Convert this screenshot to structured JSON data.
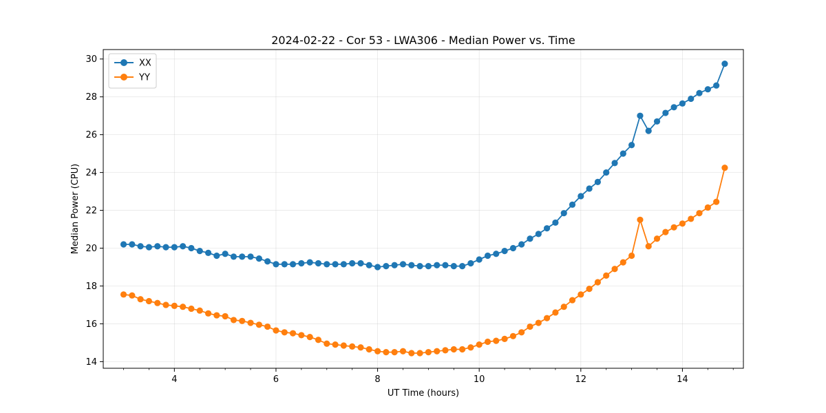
{
  "chart_data": {
    "type": "line",
    "title": "2024-02-22 - Cor 53 - LWA306 - Median Power vs. Time",
    "xlabel": "UT Time (hours)",
    "ylabel": "Median Power (CPU)",
    "xlim": [
      2.6,
      15.2
    ],
    "ylim": [
      13.65,
      30.5
    ],
    "xticks": [
      4,
      6,
      8,
      10,
      12,
      14
    ],
    "yticks": [
      14,
      16,
      18,
      20,
      22,
      24,
      26,
      28,
      30
    ],
    "grid": true,
    "legend_position": "top-left",
    "x": [
      3.0,
      3.167,
      3.333,
      3.5,
      3.667,
      3.833,
      4.0,
      4.167,
      4.333,
      4.5,
      4.667,
      4.833,
      5.0,
      5.167,
      5.333,
      5.5,
      5.667,
      5.833,
      6.0,
      6.167,
      6.333,
      6.5,
      6.667,
      6.833,
      7.0,
      7.167,
      7.333,
      7.5,
      7.667,
      7.833,
      8.0,
      8.167,
      8.333,
      8.5,
      8.667,
      8.833,
      9.0,
      9.167,
      9.333,
      9.5,
      9.667,
      9.833,
      10.0,
      10.167,
      10.333,
      10.5,
      10.667,
      10.833,
      11.0,
      11.167,
      11.333,
      11.5,
      11.667,
      11.833,
      12.0,
      12.167,
      12.333,
      12.5,
      12.667,
      12.833,
      13.0,
      13.167,
      13.333,
      13.5,
      13.667,
      13.833,
      14.0,
      14.167,
      14.333,
      14.5,
      14.667,
      14.833
    ],
    "series": [
      {
        "name": "XX",
        "color": "#1f77b4",
        "values": [
          20.2,
          20.2,
          20.1,
          20.05,
          20.1,
          20.05,
          20.05,
          20.1,
          20.0,
          19.85,
          19.75,
          19.6,
          19.7,
          19.55,
          19.55,
          19.55,
          19.45,
          19.3,
          19.15,
          19.15,
          19.15,
          19.2,
          19.25,
          19.2,
          19.15,
          19.15,
          19.15,
          19.2,
          19.2,
          19.1,
          19.0,
          19.05,
          19.1,
          19.15,
          19.1,
          19.05,
          19.05,
          19.1,
          19.1,
          19.05,
          19.05,
          19.2,
          19.4,
          19.6,
          19.7,
          19.85,
          20.0,
          20.2,
          20.5,
          20.75,
          21.05,
          21.35,
          21.85,
          22.3,
          22.75,
          23.15,
          23.5,
          24.0,
          24.5,
          25.0,
          25.45,
          27.0,
          26.2,
          26.7,
          27.15,
          27.45,
          27.65,
          27.9,
          28.2,
          28.4,
          28.6,
          29.75
        ]
      },
      {
        "name": "YY",
        "color": "#ff7f0e",
        "values": [
          17.55,
          17.5,
          17.3,
          17.2,
          17.1,
          17.0,
          16.95,
          16.9,
          16.8,
          16.7,
          16.55,
          16.45,
          16.4,
          16.2,
          16.15,
          16.05,
          15.95,
          15.85,
          15.65,
          15.55,
          15.5,
          15.4,
          15.3,
          15.15,
          14.95,
          14.9,
          14.85,
          14.8,
          14.75,
          14.65,
          14.55,
          14.5,
          14.5,
          14.55,
          14.45,
          14.45,
          14.5,
          14.55,
          14.6,
          14.65,
          14.65,
          14.75,
          14.9,
          15.05,
          15.1,
          15.2,
          15.35,
          15.55,
          15.85,
          16.05,
          16.3,
          16.6,
          16.9,
          17.25,
          17.55,
          17.85,
          18.2,
          18.55,
          18.9,
          19.25,
          19.6,
          21.5,
          20.1,
          20.5,
          20.85,
          21.1,
          21.3,
          21.55,
          21.85,
          22.15,
          22.45,
          24.25
        ]
      }
    ]
  }
}
